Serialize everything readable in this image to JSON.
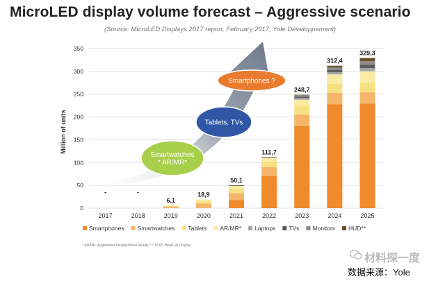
{
  "header": {
    "title": "MicroLED display volume forecast – Aggressive scenario",
    "subtitle": "(Source: MicroLED Displays 2017 report, February 2017, Yole Développement)"
  },
  "footnote": "* AR/MR: Augmented Reality/Mixed Reality / ** HUD: Head Up Display",
  "watermark": {
    "brand": "材料探一度",
    "source": "数据来源：Yole"
  },
  "colors": {
    "Smartphones": "#ef8a2d",
    "Smartwatches": "#f5b56a",
    "Tablets": "#f7e07f",
    "AR/MR*": "#fbeaa6",
    "Laptops": "#a5a5a5",
    "TVs": "#5b5b5b",
    "Monitors": "#8c8c8c",
    "HUD**": "#6b5226",
    "arrow": "#6f7b8c",
    "bubble_smartwatches": "#a8cf4a",
    "bubble_tablets": "#2f57a6",
    "bubble_smartphones": "#ea7b2e"
  },
  "chart_data": {
    "type": "bar",
    "stacked": true,
    "title": "MicroLED display volume forecast – Aggressive scenario",
    "ylabel": "Million of units",
    "ylim": [
      0,
      350
    ],
    "yticks": [
      0,
      50,
      100,
      150,
      200,
      250,
      300,
      350
    ],
    "categories": [
      "2017",
      "2018",
      "2019",
      "2020",
      "2021",
      "2022",
      "2023",
      "2024",
      "2025"
    ],
    "totals": [
      0,
      0,
      6.1,
      18.9,
      50.1,
      111.7,
      248.7,
      312.4,
      329.3
    ],
    "total_labels": [
      "-",
      "-",
      "6,1",
      "18,9",
      "50,1",
      "111,7",
      "248,7",
      "312,4",
      "329,3"
    ],
    "series": [
      {
        "name": "Smartphones",
        "values": [
          0,
          0,
          0,
          0,
          18,
          70,
          180,
          228,
          229
        ]
      },
      {
        "name": "Smartwatches",
        "values": [
          0,
          0,
          3,
          10,
          15,
          20,
          25,
          25,
          25
        ]
      },
      {
        "name": "Tablets",
        "values": [
          0,
          0,
          1.6,
          5,
          10,
          12,
          20,
          20,
          22
        ]
      },
      {
        "name": "AR/MR*",
        "values": [
          0,
          0,
          1.5,
          3.9,
          6.1,
          7.7,
          12.7,
          20.4,
          24.3
        ]
      },
      {
        "name": "Laptops",
        "values": [
          0,
          0,
          0,
          0,
          0.5,
          1,
          4,
          5,
          7
        ]
      },
      {
        "name": "TVs",
        "values": [
          0,
          0,
          0,
          0,
          0.2,
          0.5,
          3,
          5,
          7
        ]
      },
      {
        "name": "Monitors",
        "values": [
          0,
          0,
          0,
          0,
          0.2,
          0.3,
          3,
          5,
          8
        ]
      },
      {
        "name": "HUD**",
        "values": [
          0,
          0,
          0,
          0,
          0.1,
          0.2,
          1,
          4,
          7
        ]
      }
    ],
    "legend": [
      "Smartphones",
      "Smartwatches",
      "Tablets",
      "AR/MR*",
      "Laptops",
      "TVs",
      "Monitors",
      "HUD**"
    ],
    "legend_position": "bottom",
    "annotations": [
      {
        "key": "smartwatches",
        "text": "Smartwatches * AR/MR*",
        "lines": [
          "Smartwatches",
          "* AR/MR*"
        ]
      },
      {
        "key": "tablets",
        "text": "Tablets, TVs",
        "lines": [
          "Tablets, TVs"
        ]
      },
      {
        "key": "smartphones",
        "text": "Smartphones ?",
        "lines": [
          "Smartphones ?"
        ]
      }
    ]
  }
}
